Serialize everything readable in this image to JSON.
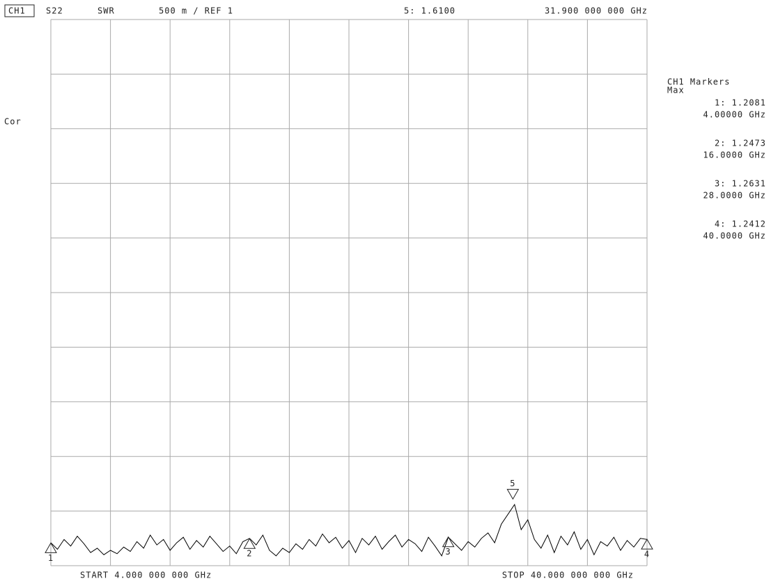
{
  "chart_data": {
    "type": "line",
    "channel": "CH1",
    "parameter": "S22",
    "format": "SWR",
    "scale": "500 m / REF 1",
    "active_marker": "5: 1.6100",
    "active_frequency": "31.900 000 000 GHz",
    "status": "Cor",
    "start": "START  4.000 000 000 GHz",
    "stop": "STOP 40.000 000 000 GHz",
    "color": "#000000",
    "grid": true,
    "xlim": [
      4,
      40
    ],
    "ylim": [
      1,
      6
    ],
    "xticks": [
      4,
      7.6,
      11.2,
      14.8,
      18.4,
      22,
      25.6,
      29.2,
      32.8,
      36.4,
      40
    ],
    "yticks": [
      1,
      1.5,
      2,
      2.5,
      3,
      3.5,
      4,
      4.5,
      5,
      5.5,
      6
    ],
    "x": [
      4,
      4.4,
      4.8,
      5.2,
      5.6,
      6,
      6.4,
      6.8,
      7.2,
      7.6,
      8,
      8.4,
      8.8,
      9.2,
      9.6,
      10,
      10.4,
      10.8,
      11.2,
      11.6,
      12,
      12.4,
      12.8,
      13.2,
      13.6,
      14,
      14.4,
      14.8,
      15.2,
      15.6,
      16,
      16.4,
      16.8,
      17.2,
      17.6,
      18,
      18.4,
      18.8,
      19.2,
      19.6,
      20,
      20.4,
      20.8,
      21.2,
      21.6,
      22,
      22.4,
      22.8,
      23.2,
      23.6,
      24,
      24.4,
      24.8,
      25.2,
      25.6,
      26,
      26.4,
      26.8,
      27.2,
      27.6,
      28,
      28.4,
      28.8,
      29.2,
      29.6,
      30,
      30.4,
      30.8,
      31.2,
      31.6,
      32,
      32.4,
      32.8,
      33.2,
      33.6,
      34,
      34.4,
      34.8,
      35.2,
      35.6,
      36,
      36.4,
      36.8,
      37.2,
      37.6,
      38,
      38.4,
      38.8,
      39.2,
      39.6,
      40
    ],
    "values": [
      1.21,
      1.15,
      1.24,
      1.18,
      1.27,
      1.2,
      1.12,
      1.16,
      1.1,
      1.14,
      1.11,
      1.17,
      1.13,
      1.22,
      1.16,
      1.28,
      1.19,
      1.24,
      1.14,
      1.21,
      1.26,
      1.15,
      1.23,
      1.17,
      1.27,
      1.2,
      1.13,
      1.18,
      1.11,
      1.22,
      1.25,
      1.19,
      1.28,
      1.14,
      1.09,
      1.16,
      1.12,
      1.2,
      1.15,
      1.24,
      1.18,
      1.29,
      1.21,
      1.26,
      1.16,
      1.23,
      1.12,
      1.25,
      1.19,
      1.27,
      1.15,
      1.22,
      1.28,
      1.17,
      1.24,
      1.2,
      1.13,
      1.26,
      1.18,
      1.09,
      1.26,
      1.2,
      1.14,
      1.22,
      1.17,
      1.25,
      1.3,
      1.21,
      1.38,
      1.47,
      1.56,
      1.33,
      1.42,
      1.24,
      1.16,
      1.28,
      1.12,
      1.27,
      1.19,
      1.31,
      1.15,
      1.24,
      1.1,
      1.22,
      1.18,
      1.26,
      1.14,
      1.23,
      1.17,
      1.25,
      1.24
    ],
    "markers": [
      {
        "label": "1",
        "x": 4,
        "value": 1.2081
      },
      {
        "label": "2",
        "x": 16,
        "value": 1.2473
      },
      {
        "label": "3",
        "x": 28,
        "value": 1.2631
      },
      {
        "label": "4",
        "x": 40,
        "value": 1.2412
      },
      {
        "label": "5",
        "x": 31.9,
        "value": 1.61
      }
    ],
    "marker_panel": {
      "title": "CH1 Markers",
      "mode": "Max",
      "entries": [
        {
          "reading": "1: 1.2081",
          "frequency": "4.00000 GHz"
        },
        {
          "reading": "2: 1.2473",
          "frequency": "16.0000 GHz"
        },
        {
          "reading": "3: 1.2631",
          "frequency": "28.0000 GHz"
        },
        {
          "reading": "4: 1.2412",
          "frequency": "40.0000 GHz"
        }
      ]
    }
  }
}
